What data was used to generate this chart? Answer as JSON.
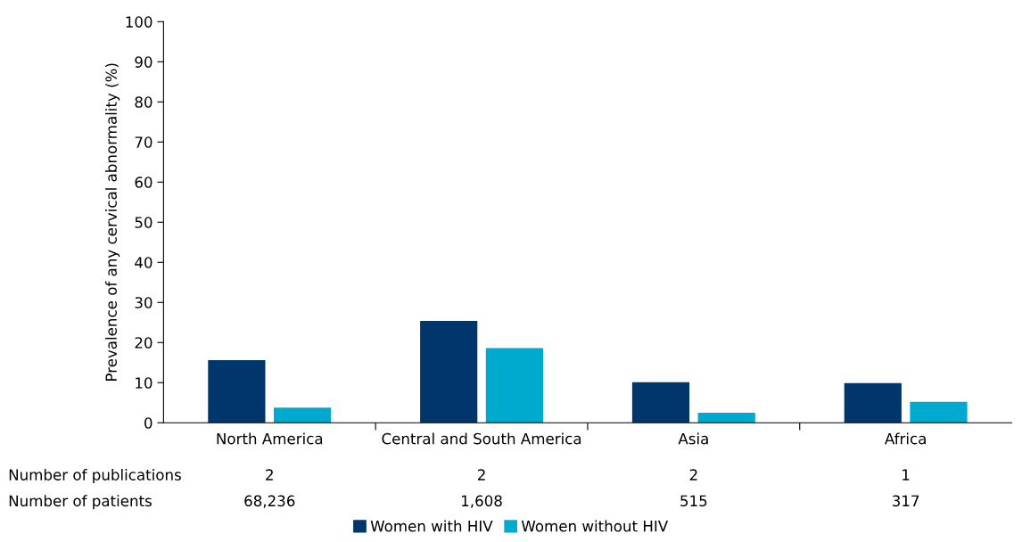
{
  "chart_data": {
    "type": "bar",
    "ylabel": "Prevalence of any cervical abnormality (%)",
    "categories": [
      "North America",
      "Central and South America",
      "Asia",
      "Africa"
    ],
    "series": [
      {
        "name": "Women with HIV",
        "color": "#00366b",
        "values": [
          15.6,
          25.4,
          10.1,
          9.9
        ]
      },
      {
        "name": "Women without HIV",
        "color": "#00aacf",
        "values": [
          3.8,
          18.6,
          2.5,
          5.2
        ]
      }
    ],
    "ylim": [
      0,
      100
    ],
    "yticks": [
      0,
      10,
      20,
      30,
      40,
      50,
      60,
      70,
      80,
      90,
      100
    ],
    "grid": false,
    "legend": "bottom",
    "annotations": [
      "Number of publications",
      "2",
      "2",
      "2",
      "1",
      "Number of patients",
      "68,236",
      "1,608",
      "515",
      "317"
    ]
  }
}
